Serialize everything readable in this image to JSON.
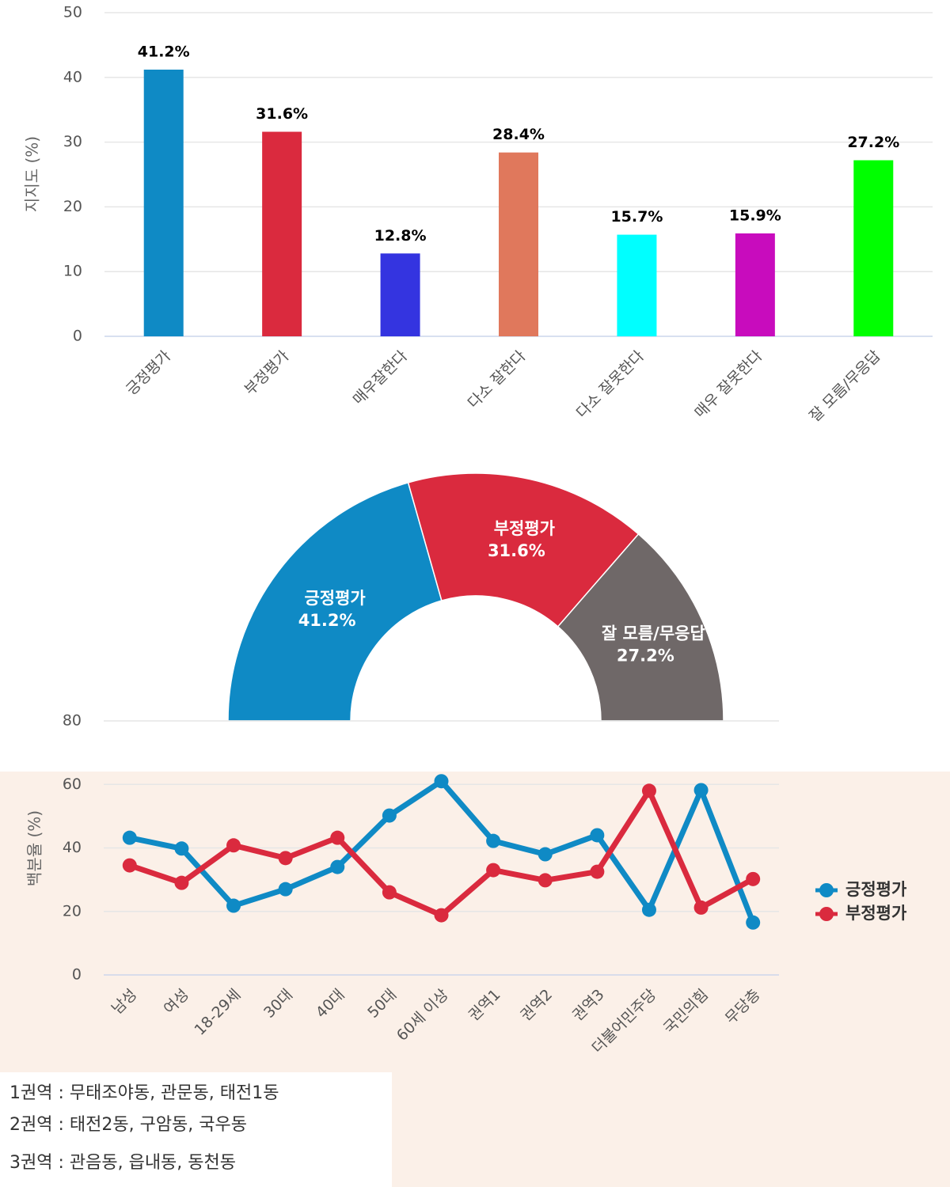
{
  "chart_data": [
    {
      "type": "bar",
      "ylabel": "지지도 (%)",
      "categories": [
        "긍정평가",
        "부정평가",
        "매우잘한다",
        "다소 잘한다",
        "다소 잘못한다",
        "매우 잘못한다",
        "잘 모름/무응답"
      ],
      "values": [
        41.2,
        31.6,
        12.8,
        28.4,
        15.7,
        15.9,
        27.2
      ],
      "value_labels": [
        "41.2%",
        "31.6%",
        "12.8%",
        "28.4%",
        "15.7%",
        "15.9%",
        "27.2%"
      ],
      "colors": [
        "#0f8ac5",
        "#da2a3e",
        "#3434e0",
        "#e0785c",
        "#00ffff",
        "#c80cbd",
        "#00ff00"
      ],
      "ylim": [
        0,
        50
      ],
      "yticks": [
        0,
        10,
        20,
        30,
        40,
        50
      ],
      "grid": true
    },
    {
      "type": "pie",
      "categories": [
        "긍정평가",
        "부정평가",
        "잘 모름/무응답"
      ],
      "values": [
        41.2,
        31.6,
        27.2
      ],
      "value_labels": [
        "41.2%",
        "31.6%",
        "27.2%"
      ],
      "colors": [
        "#0f8ac5",
        "#da2a3e",
        "#6f6868"
      ]
    },
    {
      "type": "line",
      "ylabel": "백분율 (%)",
      "categories": [
        "남성",
        "여성",
        "18-29세",
        "30대",
        "40대",
        "50대",
        "60세 이상",
        "권역1",
        "권역2",
        "권역3",
        "더불어민주당",
        "국민의힘",
        "무당층"
      ],
      "series": [
        {
          "name": "긍정평가",
          "color": "#0f8ac5",
          "values": [
            43.2,
            39.8,
            21.8,
            27,
            34,
            50.2,
            61,
            42.2,
            38,
            44,
            20.5,
            58.2,
            16.5
          ]
        },
        {
          "name": "부정평가",
          "color": "#da2a3e",
          "values": [
            34.5,
            29,
            40.8,
            36.8,
            43.2,
            26,
            18.8,
            33,
            29.8,
            32.5,
            58,
            21.2,
            30.2
          ]
        }
      ],
      "ylim": [
        0,
        80
      ],
      "yticks": [
        0,
        20,
        40,
        60,
        80
      ],
      "grid": true,
      "legend": "right"
    }
  ],
  "notes": [
    "1권역 : 무태조야동, 관문동, 태전1동",
    "2권역 : 태전2동, 구암동, 국우동",
    "3권역 : 관음동, 읍내동, 동천동"
  ]
}
